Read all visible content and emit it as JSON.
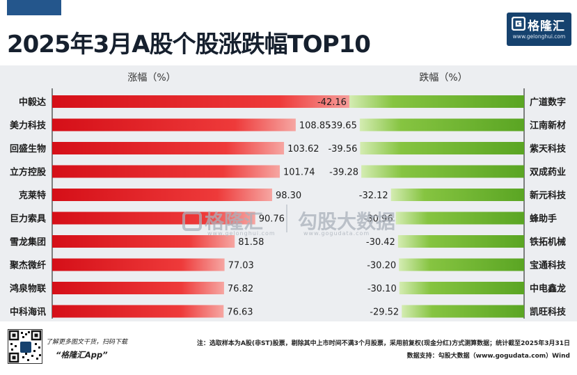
{
  "header": {
    "title": "2025年3月A股个股涨跌幅TOP10"
  },
  "logo": {
    "name": "格隆汇",
    "url": "www.gelonghui.com"
  },
  "watermark": {
    "left_name": "格隆汇",
    "left_url": "www.gelonghui.com",
    "right_name": "勾股大数据",
    "right_url": "www.gogudata.com"
  },
  "chart_data": [
    {
      "type": "bar",
      "orientation": "horizontal",
      "xlabel": "涨幅（%）",
      "categories": [
        "中毅达",
        "美力科技",
        "回盛生物",
        "立方控股",
        "克莱特",
        "巨力索具",
        "雪龙集团",
        "聚杰微纤",
        "鸿泉物联",
        "中科海讯"
      ],
      "values": [
        135.41,
        108.85,
        103.62,
        101.74,
        98.3,
        90.76,
        81.58,
        77.03,
        76.82,
        76.63
      ],
      "xlim": [
        0,
        140
      ],
      "grid": false,
      "color": "#e8202a"
    },
    {
      "type": "bar",
      "orientation": "horizontal",
      "xlabel": "跌幅（%）",
      "categories": [
        "广道数字",
        "江南新材",
        "紫天科技",
        "双成药业",
        "新元科技",
        "蜂助手",
        "铁拓机械",
        "宝通科技",
        "中电鑫龙",
        "凯旺科技"
      ],
      "values": [
        -42.16,
        -39.65,
        -39.56,
        -39.28,
        -32.12,
        -30.96,
        -30.42,
        -30.2,
        -30.1,
        -29.52
      ],
      "xlim": [
        -45,
        0
      ],
      "grid": false,
      "color": "#6ab52a"
    }
  ],
  "footer": {
    "qr_text": "了解更多图文干货，扫码下载",
    "app_name": "“格隆汇App”",
    "note": "注：选取样本为A股(非ST)股票，剔除其中上市时间不满3个月股票，采用前复权(现金分红)方式测算数据；统计截至2025年3月31日",
    "source": "数据支持：勾股大数据（www.gogudata.com）Wind"
  },
  "colors": {
    "background": "#ffffff",
    "panel": "#eceef1",
    "gain_bar": "#e8202a",
    "loss_bar": "#6ab52a",
    "brand": "#16426e"
  }
}
